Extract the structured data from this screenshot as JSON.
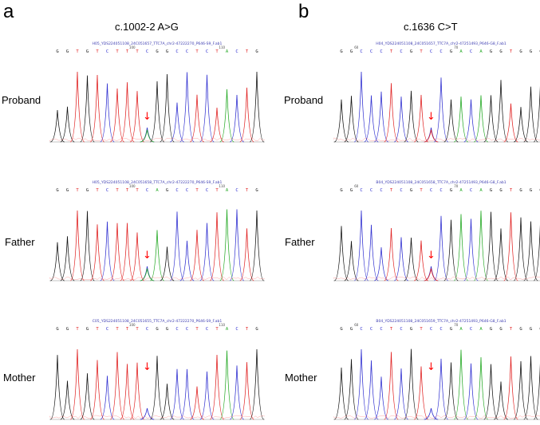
{
  "panels": [
    {
      "letter": "a",
      "title": "c.1002-2 A>G",
      "rows": [
        {
          "label": "Proband",
          "file": "H05_YDS224051108_24C051657_TTC7A_chr2-47222270_P646-S9_F.ab1",
          "bases": [
            "G",
            "G",
            "T",
            "G",
            "T",
            "C",
            "T",
            "T",
            "T",
            "C",
            "G",
            "G",
            "C",
            "C",
            "T",
            "C",
            "T",
            "A",
            "C",
            "T",
            "G"
          ],
          "positions": [
            {
              "after": 7,
              "text": "100"
            },
            {
              "after": 16,
              "text": "110"
            }
          ],
          "arrow_peak": 9,
          "mutant": "double"
        },
        {
          "label": "Father",
          "file": "H05_YDS224051108_24C051658_TTC7A_chr2-47222270_P646-S9_F.ab1",
          "bases": [
            "G",
            "G",
            "T",
            "G",
            "T",
            "C",
            "T",
            "T",
            "T",
            "C",
            "A",
            "G",
            "C",
            "C",
            "T",
            "C",
            "T",
            "A",
            "C",
            "T",
            "G"
          ],
          "positions": [
            {
              "after": 7,
              "text": "100"
            },
            {
              "after": 16,
              "text": "110"
            }
          ],
          "arrow_peak": 9,
          "mutant": "double"
        },
        {
          "label": "Mother",
          "file": "C05_YDS224051108_24C051655_TTC7A_chr2-47222270_P646-S9_F.ab1",
          "bases": [
            "G",
            "G",
            "T",
            "G",
            "T",
            "C",
            "T",
            "T",
            "T",
            "C",
            "G",
            "G",
            "C",
            "C",
            "T",
            "C",
            "T",
            "A",
            "C",
            "T",
            "G"
          ],
          "positions": [
            {
              "after": 7,
              "text": "100"
            },
            {
              "after": 16,
              "text": "110"
            }
          ],
          "arrow_peak": 9,
          "mutant": "normal"
        }
      ]
    },
    {
      "letter": "b",
      "title": "c.1636 C>T",
      "rows": [
        {
          "label": "Proband",
          "file": "H04_YDS224051108_24C051657_TTC7A_chr2-47251493_P646-G8_F.ab1",
          "bases": [
            "G",
            "G",
            "C",
            "C",
            "C",
            "T",
            "C",
            "G",
            "T",
            "C",
            "C",
            "G",
            "A",
            "C",
            "A",
            "G",
            "G",
            "T",
            "G",
            "G",
            "G"
          ],
          "positions": [
            {
              "after": 1,
              "text": "60"
            },
            {
              "after": 11,
              "text": "70"
            }
          ],
          "arrow_peak": 9,
          "mutant": "double"
        },
        {
          "label": "Father",
          "file": "B04_YDS224051108_24C051658_TTC7A_chr2-47251493_P646-G8_F.ab1",
          "bases": [
            "G",
            "G",
            "C",
            "C",
            "C",
            "T",
            "C",
            "G",
            "T",
            "C",
            "C",
            "G",
            "A",
            "C",
            "A",
            "G",
            "G",
            "T",
            "G",
            "G",
            "G"
          ],
          "positions": [
            {
              "after": 1,
              "text": "60"
            },
            {
              "after": 11,
              "text": "70"
            }
          ],
          "arrow_peak": 9,
          "mutant": "double"
        },
        {
          "label": "Mother",
          "file": "B04_YDS224051108_24C051659_TTC7A_chr2-47251493_P646-G8_F.ab1",
          "bases": [
            "G",
            "G",
            "C",
            "C",
            "C",
            "T",
            "C",
            "G",
            "T",
            "C",
            "C",
            "G",
            "A",
            "C",
            "A",
            "G",
            "G",
            "T",
            "G",
            "G",
            "G"
          ],
          "positions": [
            {
              "after": 1,
              "text": "60"
            },
            {
              "after": 11,
              "text": "70"
            }
          ],
          "arrow_peak": 9,
          "mutant": "normal"
        }
      ]
    }
  ],
  "arrow_glyph": "↓",
  "base_colors": {
    "A": "#22a822",
    "C": "#2f2fd0",
    "G": "#111111",
    "T": "#e02020"
  }
}
